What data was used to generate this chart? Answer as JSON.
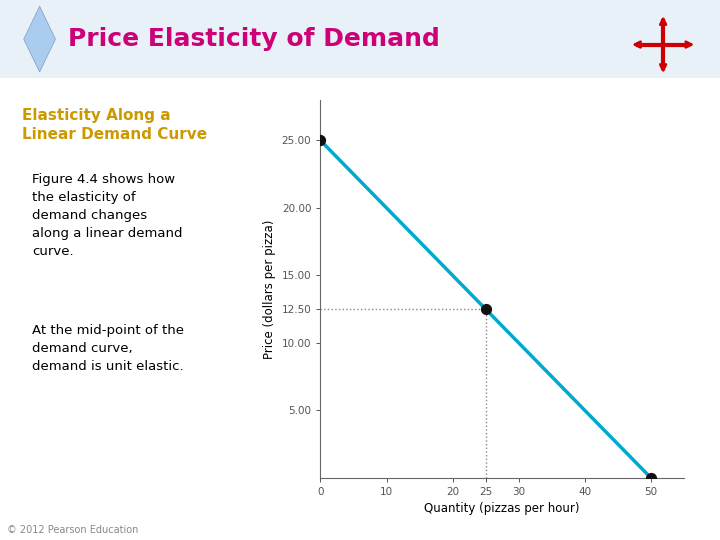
{
  "title": "Price Elasticity of Demand",
  "title_color": "#cc0077",
  "subtitle": "Elasticity Along a\nLinear Demand Curve",
  "subtitle_color": "#cc9900",
  "para1": "Figure 4.4 shows how\nthe elasticity of\ndemand changes\nalong a linear demand\ncurve.",
  "para2": "At the mid-point of the\ndemand curve,\ndemand is unit elastic.",
  "body_color": "#000000",
  "diamond_color": "#aaccee",
  "bg_color": "#ffffff",
  "xlabel": "Quantity (pizzas per hour)",
  "ylabel": "Price (dollars per pizza)",
  "x_data": [
    0,
    50
  ],
  "y_data": [
    25,
    0
  ],
  "dot_points": [
    [
      0,
      25
    ],
    [
      25,
      12.5
    ],
    [
      50,
      0
    ]
  ],
  "dotted_x": 25,
  "dotted_y": 12.5,
  "xlim": [
    0,
    55
  ],
  "ylim": [
    0,
    28
  ],
  "xticks": [
    0,
    10,
    20,
    25,
    30,
    40,
    50
  ],
  "yticks": [
    5.0,
    10.0,
    12.5,
    15.0,
    20.0,
    25.0
  ],
  "ytick_labels": [
    "5.00",
    "10.00",
    "12.50",
    "15.00",
    "20.00",
    "25.00"
  ],
  "line_color": "#00aacc",
  "line_width": 2.5,
  "dot_color": "#111111",
  "dot_size": 50,
  "copyright": "© 2012 Pearson Education",
  "icon_bg": "#f0ece4",
  "icon_color": "#cc0000",
  "title_bg": "#ddeeff"
}
